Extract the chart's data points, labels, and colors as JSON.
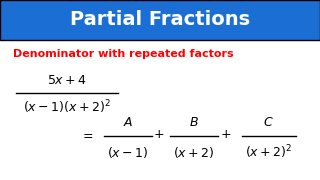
{
  "title": "Partial Fractions",
  "title_bg_color": "#1B6FD4",
  "title_text_color": "#FFFFFF",
  "subtitle": "Denominator with repeated factors",
  "subtitle_color": "#FF0000",
  "bg_color": "#FFFFFF",
  "math_color": "#000000",
  "figsize": [
    3.2,
    1.8
  ],
  "dpi": 100,
  "title_fontsize": 14,
  "subtitle_fontsize": 8,
  "math_fontsize": 9
}
